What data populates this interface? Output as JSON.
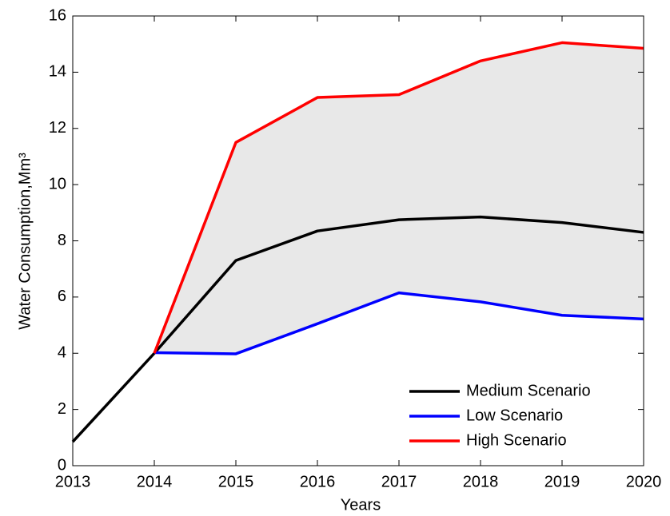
{
  "chart_data": {
    "type": "line",
    "xlabel": "Years",
    "ylabel": "Water Consumption,Mm³",
    "x": [
      2013,
      2014,
      2015,
      2016,
      2017,
      2018,
      2019,
      2020
    ],
    "series": [
      {
        "name": "Medium Scenario",
        "color": "#000000",
        "values": [
          0.85,
          4.0,
          7.3,
          8.35,
          8.75,
          8.85,
          8.65,
          8.3
        ]
      },
      {
        "name": "Low Scenario",
        "color": "#0000ff",
        "values": [
          null,
          4.02,
          3.98,
          5.05,
          6.15,
          5.83,
          5.35,
          5.22
        ]
      },
      {
        "name": "High Scenario",
        "color": "#ff0000",
        "values": [
          null,
          4.0,
          11.5,
          13.1,
          13.2,
          14.4,
          15.05,
          14.85
        ]
      }
    ],
    "band_color": "#e8e8e8",
    "xlim": [
      2013,
      2020
    ],
    "xticks": [
      2013,
      2014,
      2015,
      2016,
      2017,
      2018,
      2019,
      2020
    ],
    "ylim": [
      0,
      16
    ],
    "yticks": [
      0,
      2,
      4,
      6,
      8,
      10,
      12,
      14,
      16
    ],
    "legend": "lower right"
  }
}
